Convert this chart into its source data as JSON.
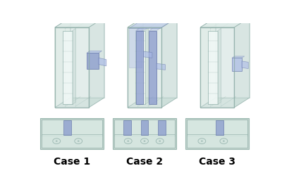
{
  "cases": [
    "Case 1",
    "Case 2",
    "Case 3"
  ],
  "bg_color": "#ffffff",
  "label_fontsize": 10,
  "label_fontweight": "bold",
  "fig_width": 4.0,
  "fig_height": 2.73,
  "fig_dpi": 100,
  "glass_light": "#dceae6",
  "glass_mid": "#c8dbd6",
  "glass_dark": "#b0ccc6",
  "glass_edge": "#8aaaa4",
  "glass_alpha": 0.55,
  "white_panel": "#f0f8f6",
  "blue_light": "#a8b8e8",
  "blue_mid": "#8899cc",
  "blue_dark": "#6677aa",
  "blue_alpha": 0.75,
  "bot_bg": "#c5d5cf",
  "bot_panel": "#d8e8e2",
  "bot_dark": "#9ab8b0"
}
